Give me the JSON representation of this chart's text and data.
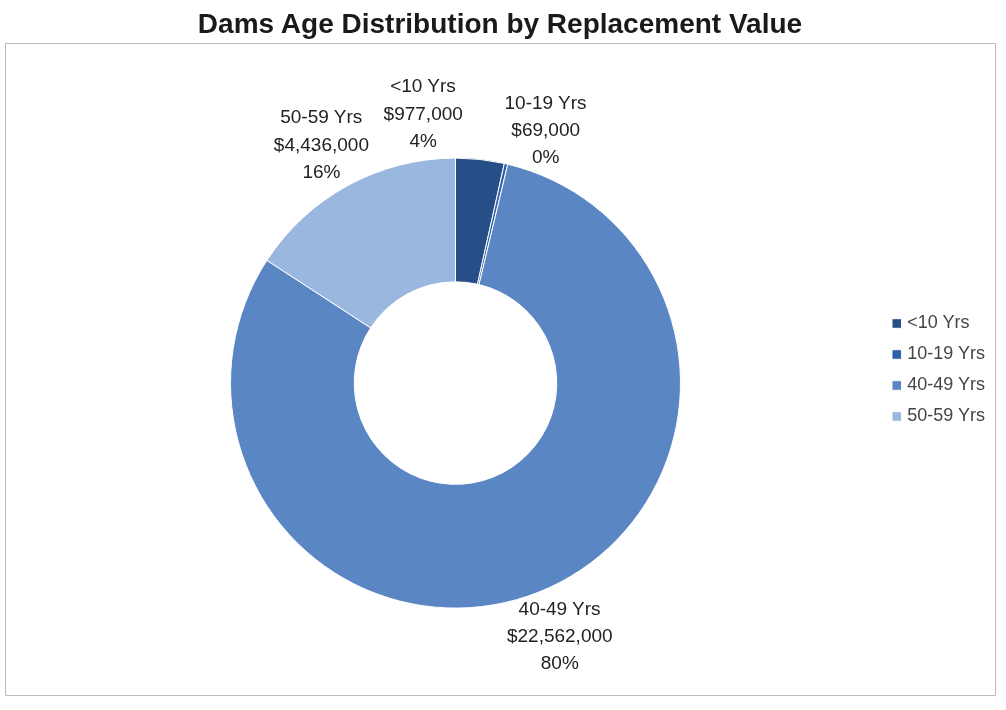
{
  "chart_data": {
    "type": "donut",
    "title": "Dams Age Distribution by Replacement Value",
    "categories": [
      "<10 Yrs",
      "10-19 Yrs",
      "40-49 Yrs",
      "50-59 Yrs"
    ],
    "values": [
      977000,
      69000,
      22562000,
      4436000
    ],
    "colors": [
      "#254f86",
      "#2f5fa6",
      "#5b86c4",
      "#9ab7df"
    ],
    "value_labels": [
      "$977,000\n4%",
      "$69,000\n0%",
      "$22,562,000\n80%",
      "$4,436,000\n16%"
    ],
    "legend": "right"
  }
}
